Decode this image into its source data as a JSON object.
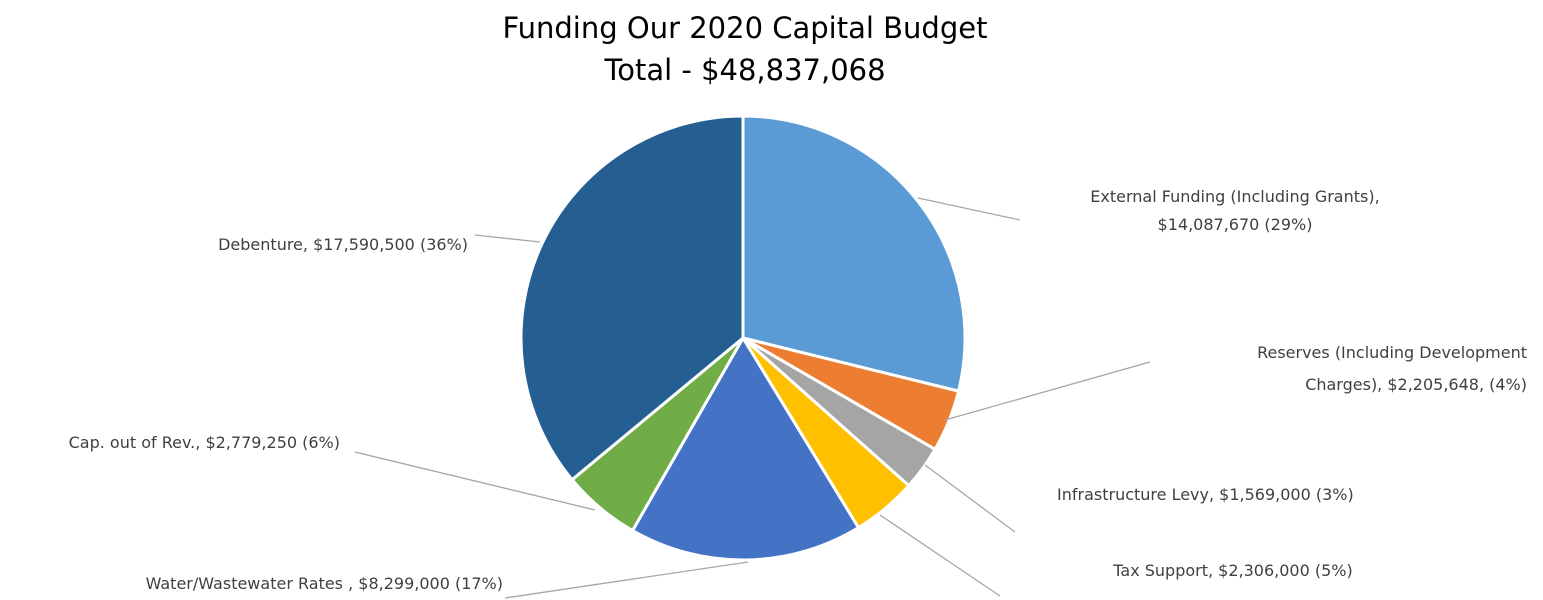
{
  "chart_data": {
    "type": "pie",
    "title": "Funding Our 2020 Capital Budget",
    "subtitle": "Total - $48,837,068",
    "total": 48837068,
    "slices": [
      {
        "key": "external",
        "name": "External Funding (Including Grants)",
        "value": 14087670,
        "percent": 29,
        "color": "#5B9BD5",
        "label_lines": [
          "External Funding (Including Grants),",
          "$14,087,670 (29%)"
        ]
      },
      {
        "key": "reserves",
        "name": "Reserves (Including Development Charges)",
        "value": 2205648,
        "percent": 4,
        "color": "#ED7D31",
        "label_lines": [
          "Reserves (Including Development",
          "Charges), $2,205,648, (4%)"
        ]
      },
      {
        "key": "infrastructure",
        "name": "Infrastructure Levy",
        "value": 1569000,
        "percent": 3,
        "color": "#A5A5A5",
        "label_lines": [
          "Infrastructure  Levy, $1,569,000 (3%)"
        ]
      },
      {
        "key": "tax",
        "name": "Tax Support",
        "value": 2306000,
        "percent": 5,
        "color": "#FFC000",
        "label_lines": [
          "Tax Support, $2,306,000  (5%)"
        ]
      },
      {
        "key": "water",
        "name": "Water/Wastewater Rates",
        "value": 8299000,
        "percent": 17,
        "color": "#4472C4",
        "label_lines": [
          "Water/Wastewater  Rates , $8,299,000 (17%)"
        ]
      },
      {
        "key": "capout",
        "name": "Cap. out of Rev.",
        "value": 2779250,
        "percent": 6,
        "color": "#70AD47",
        "label_lines": [
          "Cap. out of Rev., $2,779,250 (6%)"
        ]
      },
      {
        "key": "debenture",
        "name": "Debenture",
        "value": 17590500,
        "percent": 36,
        "color": "#255E91",
        "label_lines": [
          "Debenture, $17,590,500 (36%)"
        ]
      }
    ],
    "legend": "none",
    "data_labels": "outside with leader lines"
  }
}
